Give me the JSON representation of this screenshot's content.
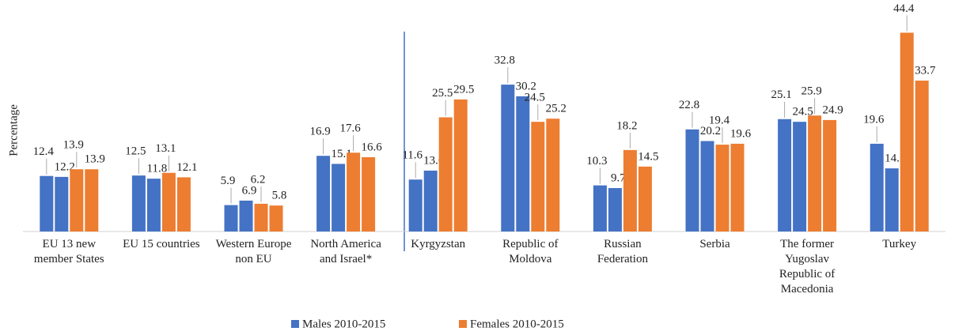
{
  "chart_data": {
    "type": "bar",
    "y_label": "Percentage",
    "categories": [
      "EU 13 new member States",
      "EU 15 countries",
      "Western Europe non EU",
      "North America and Israel*",
      "Kyrgyzstan",
      "Republic of Moldova",
      "Russian Federation",
      "Serbia",
      "The former Yugoslav Republic of Macedonia",
      "Turkey"
    ],
    "series": [
      {
        "color": "#4472c4",
        "values": [
          12.4,
          12.5,
          5.9,
          16.9,
          11.6,
          32.8,
          10.3,
          22.8,
          25.1,
          19.6
        ]
      },
      {
        "name": "Males 2010-2015",
        "color": "#4472c4",
        "values": [
          12.2,
          11.8,
          6.9,
          15.1,
          13.6,
          30.2,
          9.7,
          20.2,
          24.5,
          14.1
        ]
      },
      {
        "color": "#ed7d31",
        "values": [
          13.9,
          13.1,
          6.2,
          17.6,
          25.5,
          24.5,
          18.2,
          19.4,
          25.9,
          44.4
        ]
      },
      {
        "name": "Females 2010-2015",
        "color": "#ed7d31",
        "values": [
          13.9,
          12.1,
          5.8,
          16.6,
          29.5,
          25.2,
          14.5,
          19.6,
          24.9,
          33.7
        ]
      }
    ],
    "ylim": [
      0,
      45
    ]
  }
}
